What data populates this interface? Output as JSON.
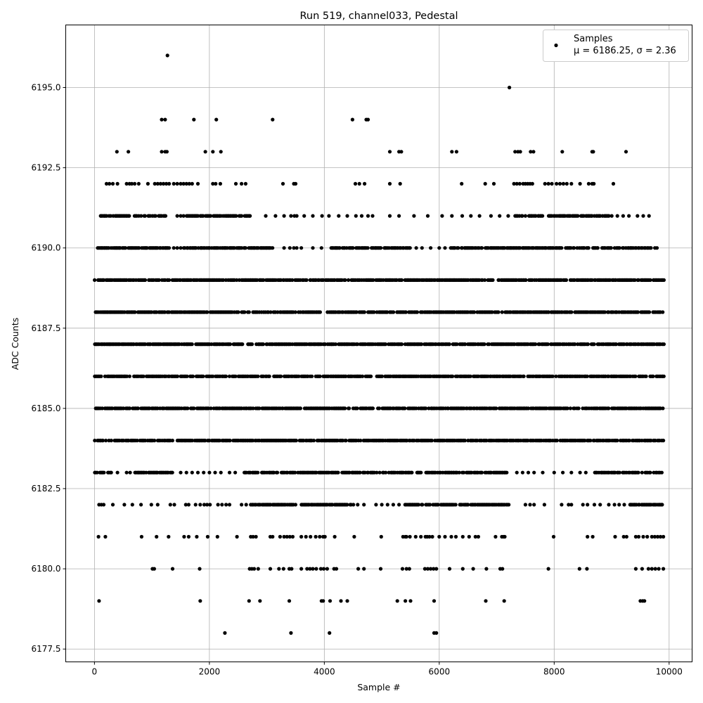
{
  "chart_data": {
    "type": "scatter",
    "title": "Run 519, channel033, Pedestal",
    "xlabel": "Sample #",
    "ylabel": "ADC Counts",
    "xlim": [
      -500,
      10400
    ],
    "ylim": [
      6177.1,
      6196.95
    ],
    "xticks": [
      0,
      2000,
      4000,
      6000,
      8000,
      10000
    ],
    "xtick_labels": [
      "0",
      "2000",
      "4000",
      "6000",
      "8000",
      "10000"
    ],
    "yticks": [
      6177.5,
      6180.0,
      6182.5,
      6185.0,
      6187.5,
      6190.0,
      6192.5,
      6195.0
    ],
    "ytick_labels": [
      "6177.5",
      "6180.0",
      "6182.5",
      "6185.0",
      "6187.5",
      "6190.0",
      "6192.5",
      "6195.0"
    ],
    "grid": true,
    "legend": {
      "placement": "top-right",
      "series_label": "Samples",
      "stats_text": "μ = 6186.25, σ = 2.36"
    },
    "color": "#000000",
    "x_range": [
      0,
      9900
    ],
    "levels": [
      {
        "y": 6196,
        "x": [
          1270
        ]
      },
      {
        "y": 6195,
        "x": [
          7220
        ]
      },
      {
        "y": 6194,
        "x": [
          1170,
          1230,
          1730,
          2120,
          3100,
          4490,
          4730,
          4760
        ]
      },
      {
        "y": 6193,
        "x": [
          390,
          590,
          1170,
          1230,
          1260,
          1930,
          2060,
          2200,
          5140,
          5300,
          5340,
          6220,
          6300,
          7320,
          7370,
          7410,
          7590,
          7640,
          8140,
          8660,
          8680,
          9250
        ]
      },
      {
        "y": 6192,
        "x": [
          210,
          260,
          320,
          400,
          560,
          610,
          650,
          700,
          770,
          930,
          1050,
          1100,
          1150,
          1200,
          1250,
          1300,
          1380,
          1440,
          1500,
          1550,
          1600,
          1650,
          1700,
          1800,
          2060,
          2110,
          2190,
          2460,
          2560,
          2630,
          3280,
          3470,
          3500,
          4540,
          4610,
          4700,
          5140,
          5320,
          6390,
          6800,
          6950,
          7300,
          7350,
          7400,
          7460,
          7500,
          7540,
          7580,
          7620,
          7840,
          7900,
          7960,
          8040,
          8100,
          8160,
          8220,
          8300,
          8450,
          8600,
          8660,
          8690,
          9030
        ]
      },
      {
        "y": 6191,
        "x_dense": [
          [
            100,
            1250
          ],
          [
            1600,
            2700
          ],
          [
            7300,
            7800
          ],
          [
            7900,
            9000
          ]
        ],
        "x": [
          1440,
          1500,
          1550,
          2700,
          2980,
          3150,
          3300,
          3420,
          3480,
          3520,
          3650,
          3800,
          3960,
          4080,
          4250,
          4400,
          4550,
          4650,
          4760,
          4840,
          5140,
          5300,
          5560,
          5800,
          6050,
          6220,
          6400,
          6550,
          6700,
          6900,
          7050,
          7200,
          9100,
          9200,
          9300,
          9450,
          9550,
          9650
        ]
      },
      {
        "y": 6190,
        "x_dense": [
          [
            50,
            1300
          ],
          [
            1550,
            3100
          ],
          [
            4100,
            5500
          ],
          [
            6200,
            9800
          ]
        ],
        "x": [
          1380,
          1440,
          1500,
          3300,
          3400,
          3470,
          3520,
          3600,
          3800,
          3950,
          5600,
          5700,
          5850,
          6000,
          6100
        ]
      },
      {
        "y": 6189,
        "x_dense": [
          [
            0,
            9900
          ]
        ],
        "x": []
      },
      {
        "y": 6188,
        "x_dense": [
          [
            0,
            9900
          ]
        ],
        "x": []
      },
      {
        "y": 6187,
        "x_dense": [
          [
            0,
            9900
          ]
        ],
        "x": []
      },
      {
        "y": 6186,
        "x_dense": [
          [
            0,
            9900
          ]
        ],
        "x": []
      },
      {
        "y": 6185,
        "x_dense": [
          [
            0,
            9900
          ]
        ],
        "x": []
      },
      {
        "y": 6184,
        "x_dense": [
          [
            0,
            9900
          ]
        ],
        "x": []
      },
      {
        "y": 6183,
        "x_dense": [
          [
            0,
            300
          ],
          [
            700,
            1400
          ],
          [
            2600,
            7200
          ],
          [
            8700,
            9900
          ]
        ],
        "x": [
          400,
          560,
          620,
          1500,
          1600,
          1700,
          1800,
          1900,
          2000,
          2100,
          2200,
          2350,
          2450,
          7350,
          7450,
          7550,
          7650,
          7800,
          8000,
          8150,
          8300,
          8450,
          8550
        ]
      },
      {
        "y": 6182,
        "x_dense": [
          [
            2700,
            3500
          ],
          [
            3600,
            4500
          ],
          [
            5400,
            7200
          ],
          [
            9300,
            9900
          ]
        ],
        "x": [
          80,
          120,
          160,
          320,
          520,
          660,
          810,
          990,
          1100,
          1320,
          1390,
          1590,
          1640,
          1760,
          1840,
          1910,
          1960,
          2010,
          2150,
          2220,
          2290,
          2350,
          2560,
          2640,
          4580,
          4690,
          4900,
          5000,
          5100,
          5200,
          5300,
          7500,
          7580,
          7650,
          7830,
          8130,
          8250,
          8300,
          8500,
          8580,
          8700,
          8800,
          8950,
          9050,
          9130,
          9220
        ]
      },
      {
        "y": 6181,
        "x": [
          70,
          190,
          820,
          1080,
          1290,
          1560,
          1640,
          1780,
          1970,
          2140,
          2480,
          2720,
          2760,
          2810,
          3060,
          3100,
          3230,
          3300,
          3350,
          3400,
          3450,
          3600,
          3680,
          3760,
          3850,
          3920,
          3980,
          4010,
          4180,
          4520,
          4990,
          5370,
          5410,
          5430,
          5490,
          5590,
          5680,
          5760,
          5790,
          5830,
          5880,
          6000,
          6100,
          6210,
          6290,
          6410,
          6520,
          6630,
          6680,
          6980,
          7090,
          7120,
          7140,
          7990,
          8580,
          8670,
          9060,
          9210,
          9260,
          9420,
          9470,
          9550,
          9620,
          9700,
          9750,
          9800,
          9850,
          9900
        ]
      },
      {
        "y": 6180,
        "x": [
          1010,
          1040,
          1360,
          1830,
          2700,
          2740,
          2780,
          2850,
          3060,
          3210,
          3290,
          3390,
          3430,
          3600,
          3700,
          3750,
          3800,
          3860,
          3940,
          3990,
          4050,
          4170,
          4210,
          4590,
          4690,
          4980,
          5360,
          5430,
          5480,
          5750,
          5800,
          5850,
          5900,
          5950,
          6180,
          6410,
          6590,
          6820,
          7060,
          7100,
          7900,
          8440,
          8570,
          9420,
          9530,
          9640,
          9700,
          9760,
          9820,
          9900
        ]
      },
      {
        "y": 6179,
        "x": [
          80,
          1840,
          2690,
          2880,
          3390,
          3950,
          3980,
          4100,
          4290,
          4400,
          5270,
          5410,
          5500,
          5910,
          6810,
          7130,
          9500,
          9540,
          9570
        ]
      },
      {
        "y": 6178,
        "x": [
          2270,
          3420,
          4090,
          5910,
          5950
        ]
      }
    ]
  }
}
